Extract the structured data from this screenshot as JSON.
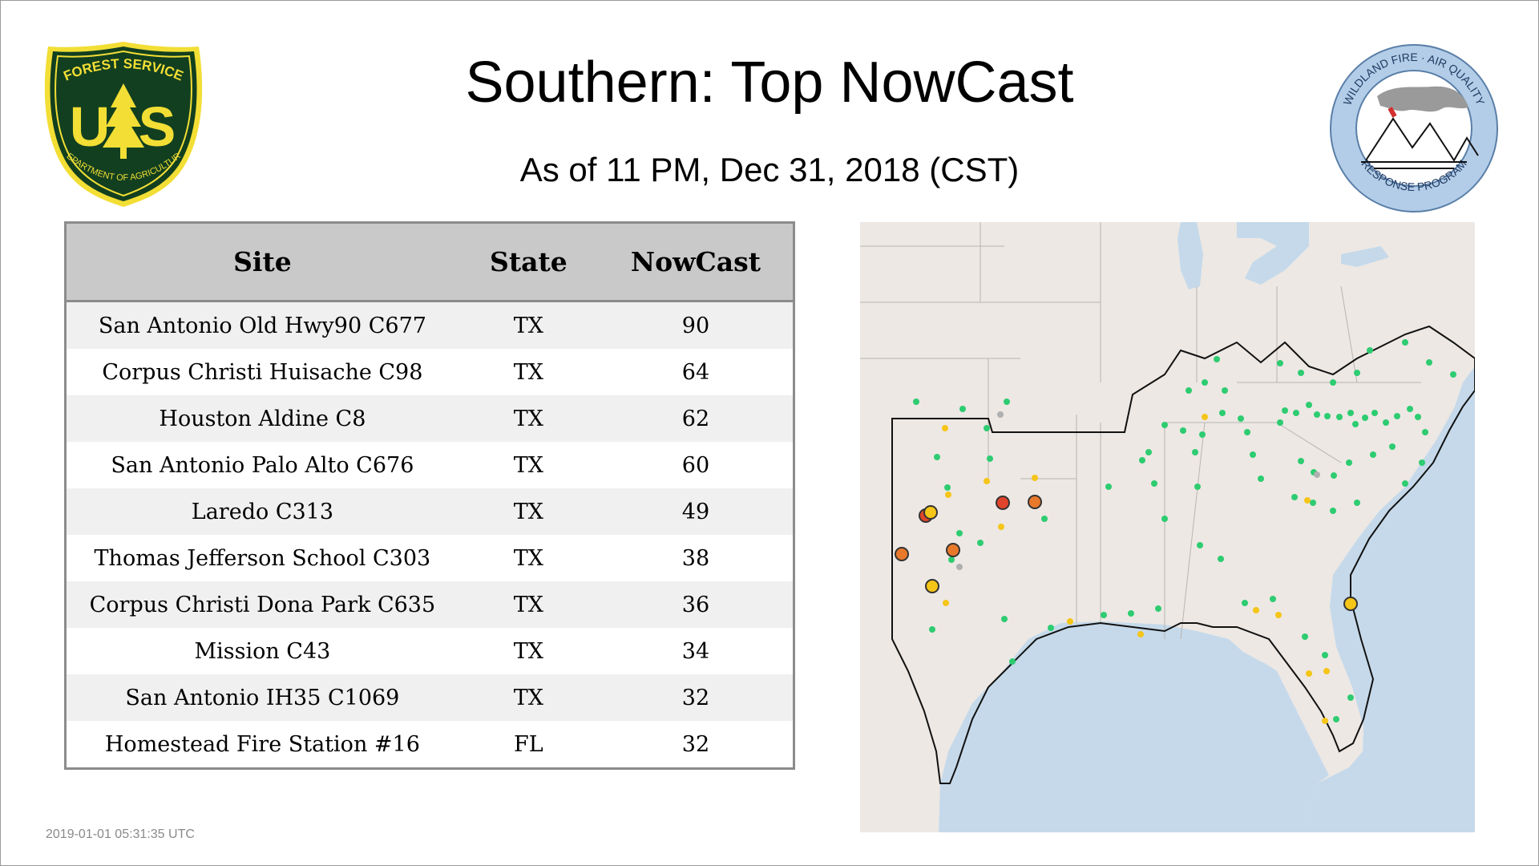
{
  "header": {
    "title": "Southern: Top NowCast",
    "subtitle": "As of 11 PM, Dec 31, 2018 (CST)"
  },
  "logos": {
    "usfs": {
      "top_text": "FOREST SERVICE",
      "initials_left": "U",
      "initials_right": "S",
      "bottom_text": "DEPARTMENT OF AGRICULTURE"
    },
    "wfaq": {
      "top_text": "WILDLAND FIRE · AIR QUALITY",
      "bottom_text": "RESPONSE PROGRAM"
    }
  },
  "table": {
    "headers": {
      "site": "Site",
      "state": "State",
      "nowcast": "NowCast"
    },
    "rows": [
      {
        "site": "San Antonio Old Hwy90 C677",
        "state": "TX",
        "nowcast": "90"
      },
      {
        "site": "Corpus Christi Huisache C98",
        "state": "TX",
        "nowcast": "64"
      },
      {
        "site": "Houston Aldine C8",
        "state": "TX",
        "nowcast": "62"
      },
      {
        "site": "San Antonio Palo Alto C676",
        "state": "TX",
        "nowcast": "60"
      },
      {
        "site": "Laredo C313",
        "state": "TX",
        "nowcast": "49"
      },
      {
        "site": "Thomas Jefferson School C303",
        "state": "TX",
        "nowcast": "38"
      },
      {
        "site": "Corpus Christi Dona Park C635",
        "state": "TX",
        "nowcast": "36"
      },
      {
        "site": "Mission C43",
        "state": "TX",
        "nowcast": "34"
      },
      {
        "site": "San Antonio IH35 C1069",
        "state": "TX",
        "nowcast": "32"
      },
      {
        "site": "Homestead Fire Station #16",
        "state": "FL",
        "nowcast": "32"
      }
    ]
  },
  "footer": {
    "timestamp": "2019-01-01 05:31:35 UTC"
  },
  "colors": {
    "usfs_green": "#123f1f",
    "usfs_yellow": "#f2de35",
    "wfaq_blue": "#b3cde8",
    "marker_green": "#2ecc71",
    "marker_yellow": "#f5c518",
    "marker_orange": "#e8782a",
    "marker_red": "#e0442a",
    "marker_gray": "#b0b0b0",
    "water": "#c5d9ea",
    "land": "#ede8e4"
  }
}
